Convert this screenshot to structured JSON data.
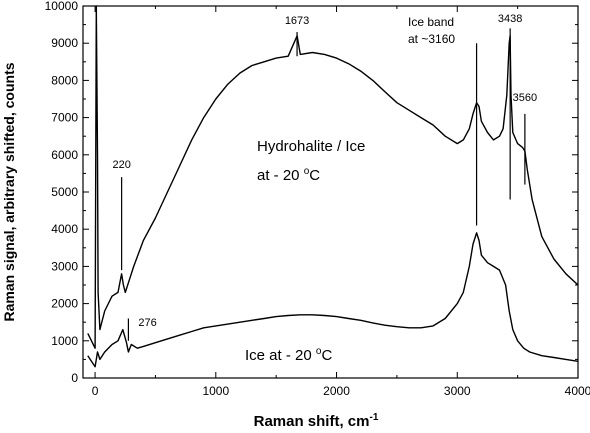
{
  "chart_data": {
    "type": "line",
    "title": "",
    "xlabel": "Raman shift, cm",
    "xlabel_sup": "-1",
    "ylabel": "Raman signal, arbitrary shifted, counts",
    "xlim": [
      -100,
      4000
    ],
    "ylim": [
      0,
      10000
    ],
    "xticks": [
      0,
      1000,
      2000,
      3000,
      4000
    ],
    "yticks": [
      0,
      1000,
      2000,
      3000,
      4000,
      5000,
      6000,
      7000,
      8000,
      9000,
      10000
    ],
    "grid": false,
    "series": [
      {
        "name": "Hydrohalite / Ice at - 20 oC",
        "color": "#000000",
        "x": [
          -60,
          0,
          10,
          20,
          25,
          40,
          80,
          140,
          190,
          220,
          235,
          250,
          280,
          320,
          400,
          500,
          600,
          700,
          800,
          900,
          1000,
          1100,
          1200,
          1300,
          1400,
          1500,
          1600,
          1673,
          1700,
          1800,
          1900,
          2000,
          2100,
          2200,
          2300,
          2400,
          2500,
          2600,
          2700,
          2800,
          2900,
          3000,
          3050,
          3100,
          3130,
          3160,
          3180,
          3200,
          3250,
          3300,
          3350,
          3380,
          3410,
          3430,
          3438,
          3445,
          3460,
          3500,
          3540,
          3560,
          3580,
          3620,
          3700,
          3800,
          3900,
          4000
        ],
        "y": [
          1200,
          800,
          10000,
          6000,
          2300,
          1300,
          1800,
          2200,
          2300,
          2800,
          2500,
          2300,
          2600,
          3000,
          3700,
          4300,
          5000,
          5700,
          6400,
          7000,
          7500,
          7900,
          8200,
          8400,
          8500,
          8600,
          8650,
          9200,
          8700,
          8750,
          8700,
          8600,
          8450,
          8250,
          8000,
          7700,
          7400,
          7200,
          7000,
          6800,
          6500,
          6300,
          6400,
          6700,
          7100,
          7400,
          7300,
          6900,
          6600,
          6400,
          6500,
          6700,
          7600,
          9000,
          9200,
          7600,
          6600,
          6300,
          6200,
          6100,
          5600,
          4800,
          3800,
          3200,
          2800,
          2500
        ],
        "annotations": [
          {
            "label": "220",
            "x": 220
          },
          {
            "label": "1673",
            "x": 1673
          },
          {
            "label": "3438",
            "x": 3438
          },
          {
            "label": "3560",
            "x": 3560
          }
        ]
      },
      {
        "name": "Ice at - 20 oC",
        "color": "#000000",
        "x": [
          -60,
          0,
          20,
          40,
          80,
          140,
          190,
          230,
          260,
          276,
          300,
          350,
          400,
          500,
          600,
          700,
          800,
          900,
          1000,
          1100,
          1200,
          1300,
          1400,
          1500,
          1600,
          1700,
          1800,
          1900,
          2000,
          2100,
          2200,
          2300,
          2400,
          2500,
          2600,
          2700,
          2800,
          2900,
          3000,
          3050,
          3100,
          3130,
          3160,
          3180,
          3200,
          3250,
          3300,
          3350,
          3400,
          3430,
          3460,
          3500,
          3550,
          3600,
          3700,
          3800,
          3900,
          4000
        ],
        "y": [
          600,
          300,
          700,
          500,
          700,
          900,
          1000,
          1300,
          950,
          700,
          900,
          800,
          850,
          950,
          1050,
          1150,
          1250,
          1350,
          1400,
          1450,
          1500,
          1550,
          1600,
          1650,
          1680,
          1700,
          1700,
          1680,
          1650,
          1600,
          1550,
          1480,
          1420,
          1380,
          1350,
          1350,
          1400,
          1600,
          2000,
          2300,
          3000,
          3600,
          3900,
          3700,
          3300,
          3100,
          3000,
          2900,
          2500,
          1800,
          1300,
          1000,
          800,
          700,
          600,
          550,
          500,
          450
        ],
        "annotations": [
          {
            "label": "276",
            "x": 276
          }
        ]
      }
    ],
    "text_annotations": [
      {
        "id": "ice_band_line1",
        "text": "Ice band"
      },
      {
        "id": "ice_band_line2",
        "text": "at ~3160"
      },
      {
        "id": "hydro_line1",
        "text": "Hydrohalite / Ice"
      },
      {
        "id": "hydro_line2_main",
        "text": "at - 20 "
      },
      {
        "id": "hydro_line2_sup",
        "text": "o"
      },
      {
        "id": "hydro_line2_end",
        "text": "C"
      },
      {
        "id": "ice_main",
        "text": "Ice  at - 20 "
      },
      {
        "id": "ice_sup",
        "text": "o"
      },
      {
        "id": "ice_end",
        "text": "C"
      }
    ]
  }
}
